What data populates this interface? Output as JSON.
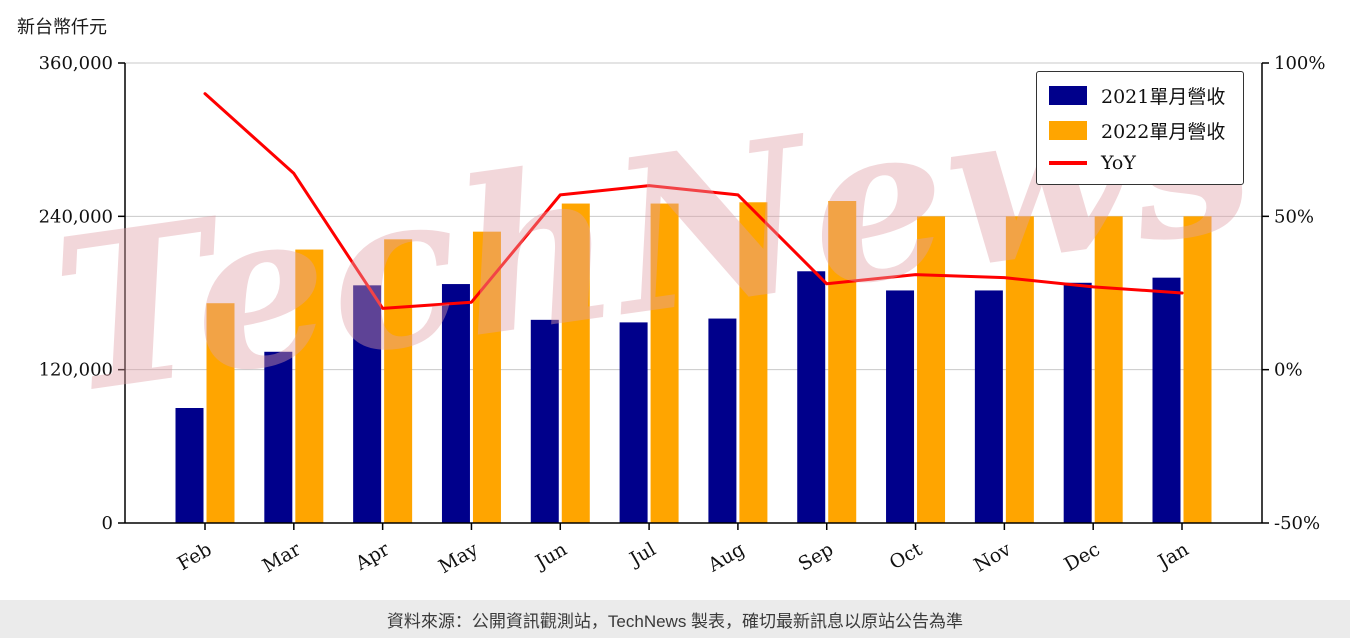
{
  "page": {
    "unit_label": "新台幣仟元",
    "watermark": "TechNews",
    "footer_text": "資料來源：公開資訊觀測站，TechNews 製表，確切最新訊息以原站公告為準"
  },
  "chart_data": {
    "type": "bar",
    "subtype": "grouped-bars-with-line",
    "categories": [
      "Feb",
      "Mar",
      "Apr",
      "May",
      "Jun",
      "Jul",
      "Aug",
      "Sep",
      "Oct",
      "Nov",
      "Dec",
      "Jan"
    ],
    "series": [
      {
        "name": "2021單月營收",
        "type": "bar",
        "axis": "left",
        "color": "#00008B",
        "values": [
          90000,
          134000,
          186000,
          187000,
          159000,
          157000,
          160000,
          197000,
          182000,
          182000,
          188000,
          192000
        ]
      },
      {
        "name": "2022單月營收",
        "type": "bar",
        "axis": "left",
        "color": "#FFA500",
        "values": [
          172000,
          214000,
          222000,
          228000,
          250000,
          250000,
          251000,
          252000,
          240000,
          240000,
          240000,
          240000
        ]
      },
      {
        "name": "YoY",
        "type": "line",
        "axis": "right",
        "color": "#FF0000",
        "values": [
          90,
          64,
          20,
          22,
          57,
          60,
          57,
          28,
          31,
          30,
          27,
          25
        ]
      }
    ],
    "left_axis": {
      "min": 0,
      "max": 360000,
      "ticks": [
        0,
        120000,
        240000,
        360000
      ]
    },
    "right_axis": {
      "min": -50,
      "max": 100,
      "ticks": [
        -50,
        0,
        50,
        100
      ],
      "suffix": "%"
    },
    "grid": true,
    "legend_position": "top-right",
    "title": "",
    "xlabel": "",
    "ylabel_left": "新台幣仟元",
    "ylabel_right": "%"
  }
}
